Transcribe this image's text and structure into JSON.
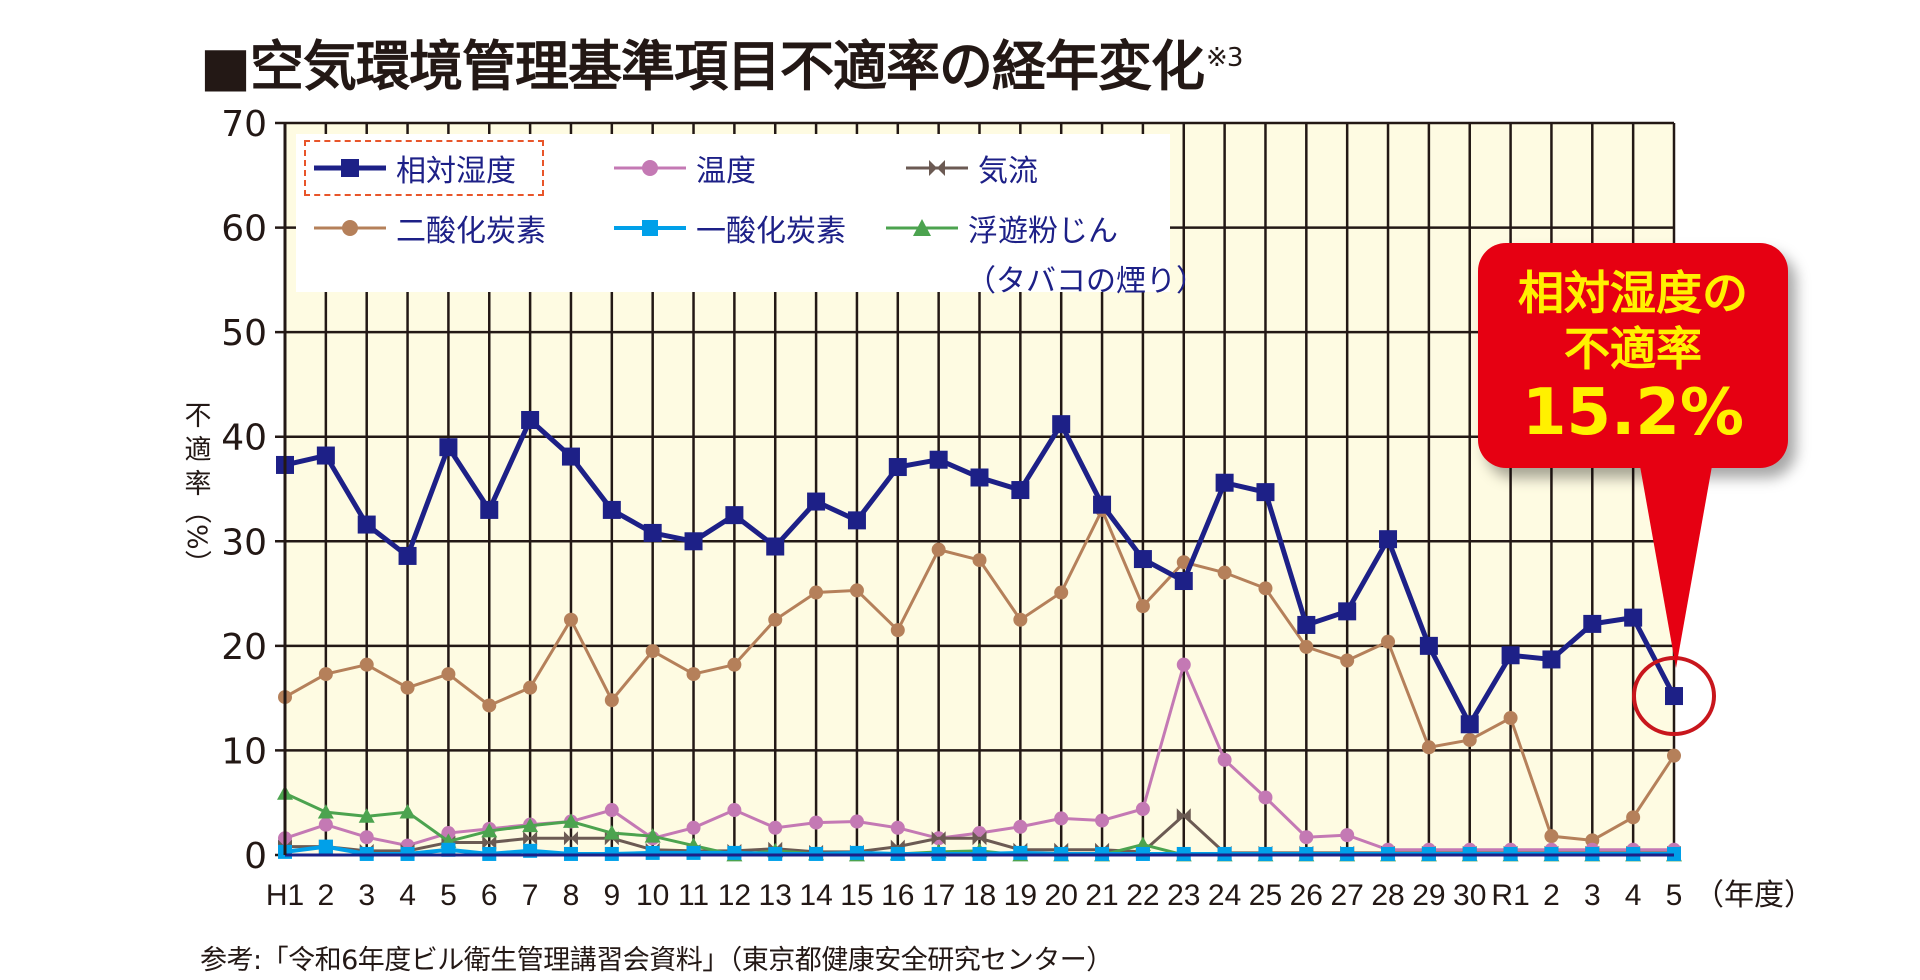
{
  "title": "■空気環境管理基準項目不適率の経年変化",
  "title_note": "※3",
  "y_axis_label": [
    "不",
    "適",
    "率",
    "（%）"
  ],
  "footnote": "参考:「令和6年度ビル衛生管理講習会資料」（東京都健康安全研究センター）",
  "legend": {
    "items": [
      {
        "label": "相対湿度",
        "color": "#1d2087",
        "marker": "square",
        "highlighted": true
      },
      {
        "label": "温度",
        "color": "#c479b4",
        "marker": "circle"
      },
      {
        "label": "気流",
        "color": "#6b5a53",
        "marker": "bowtie"
      },
      {
        "label": "二酸化炭素",
        "color": "#b5805a",
        "marker": "circle"
      },
      {
        "label": "一酸化炭素",
        "color": "#00a0e9",
        "marker": "square"
      },
      {
        "label": "浮遊粉じん",
        "label2": "（タバコの煙り）",
        "color": "#4ca34f",
        "marker": "triangle"
      }
    ]
  },
  "callout": {
    "line1": "相対湿度の",
    "line2": "不適率",
    "line3": "15.2%",
    "bg_color": "#e60012",
    "text_color": "#fff100"
  },
  "colors": {
    "plot_bg": "#fefbe2",
    "grid": "#231815",
    "highlight_ring": "#c8161d"
  },
  "chart_data": {
    "type": "line",
    "title": "空気環境管理基準項目不適率の経年変化",
    "xlabel": "（年度）",
    "ylabel": "不適率（%）",
    "ylim": [
      0,
      70
    ],
    "yticks": [
      0,
      10,
      20,
      30,
      40,
      50,
      60,
      70
    ],
    "grid": true,
    "legend_position": "top-left inside",
    "categories": [
      "H1",
      "2",
      "3",
      "4",
      "5",
      "6",
      "7",
      "8",
      "9",
      "10",
      "11",
      "12",
      "13",
      "14",
      "15",
      "16",
      "17",
      "18",
      "19",
      "20",
      "21",
      "22",
      "23",
      "24",
      "25",
      "26",
      "27",
      "28",
      "29",
      "30",
      "R1",
      "2",
      "3",
      "4",
      "5"
    ],
    "series": [
      {
        "name": "二酸化炭素",
        "values": [
          15.1,
          17.3,
          18.2,
          16.0,
          17.3,
          14.3,
          16.0,
          22.5,
          14.8,
          19.5,
          17.3,
          18.2,
          22.5,
          25.1,
          25.3,
          21.5,
          29.2,
          28.2,
          22.5,
          25.1,
          33.0,
          23.8,
          28.0,
          27.0,
          25.5,
          19.9,
          18.6,
          20.4,
          10.3,
          11.0,
          13.1,
          1.8,
          1.4,
          3.6,
          9.5
        ]
      },
      {
        "name": "温度",
        "values": [
          1.6,
          2.9,
          1.7,
          0.9,
          2.1,
          2.5,
          2.9,
          3.2,
          4.3,
          1.6,
          2.6,
          4.3,
          2.6,
          3.1,
          3.2,
          2.6,
          1.6,
          2.1,
          2.7,
          3.5,
          3.3,
          4.4,
          18.2,
          9.1,
          5.5,
          1.7,
          1.9,
          0.5,
          0.5,
          0.5,
          0.5,
          0.5,
          0.5,
          0.5,
          0.5
        ]
      },
      {
        "name": "気流",
        "values": [
          0.8,
          0.8,
          0.4,
          0.4,
          1.2,
          1.2,
          1.6,
          1.6,
          1.6,
          0.5,
          0.4,
          0.4,
          0.6,
          0.3,
          0.3,
          0.8,
          1.6,
          1.6,
          0.5,
          0.5,
          0.5,
          0.3,
          3.8,
          0.2,
          0.2,
          0.2,
          0.2,
          0.2,
          0.2,
          0.2,
          0.2,
          0.2,
          0.2,
          0.2,
          0.2
        ]
      },
      {
        "name": "浮遊粉じん（タバコの煙り）",
        "values": [
          5.9,
          4.1,
          3.7,
          4.1,
          1.3,
          2.3,
          2.8,
          3.2,
          2.1,
          1.8,
          0.9,
          0.0,
          0.4,
          0.1,
          0.0,
          0.1,
          0.3,
          0.4,
          0.0,
          0.0,
          0.0,
          1.0,
          0.0,
          0.0,
          0.0,
          0.0,
          0.0,
          0.0,
          0.0,
          0.0,
          0.0,
          0.0,
          0.0,
          0.0,
          0.0
        ]
      },
      {
        "name": "一酸化炭素",
        "values": [
          0.3,
          0.8,
          0.1,
          0.1,
          0.5,
          0.1,
          0.4,
          0.1,
          0.1,
          0.2,
          0.2,
          0.2,
          0.1,
          0.1,
          0.2,
          0.1,
          0.1,
          0.1,
          0.2,
          0.1,
          0.1,
          0.1,
          0.1,
          0.1,
          0.1,
          0.1,
          0.1,
          0.1,
          0.1,
          0.1,
          0.1,
          0.1,
          0.1,
          0.1,
          0.1
        ]
      },
      {
        "name": "相対湿度",
        "values": [
          37.3,
          38.2,
          31.6,
          28.6,
          39.0,
          33.0,
          41.6,
          38.1,
          33.0,
          30.8,
          30.0,
          32.5,
          29.5,
          33.8,
          32.0,
          37.1,
          37.8,
          36.1,
          34.9,
          41.2,
          33.5,
          28.3,
          26.2,
          35.6,
          34.7,
          22.0,
          23.3,
          30.2,
          20.0,
          12.5,
          19.1,
          18.7,
          22.1,
          22.7,
          15.2
        ]
      }
    ],
    "annotations": [
      {
        "text": "相対湿度の不適率15.2%",
        "point": "5",
        "series": "相対湿度",
        "value": 15.2
      }
    ]
  }
}
